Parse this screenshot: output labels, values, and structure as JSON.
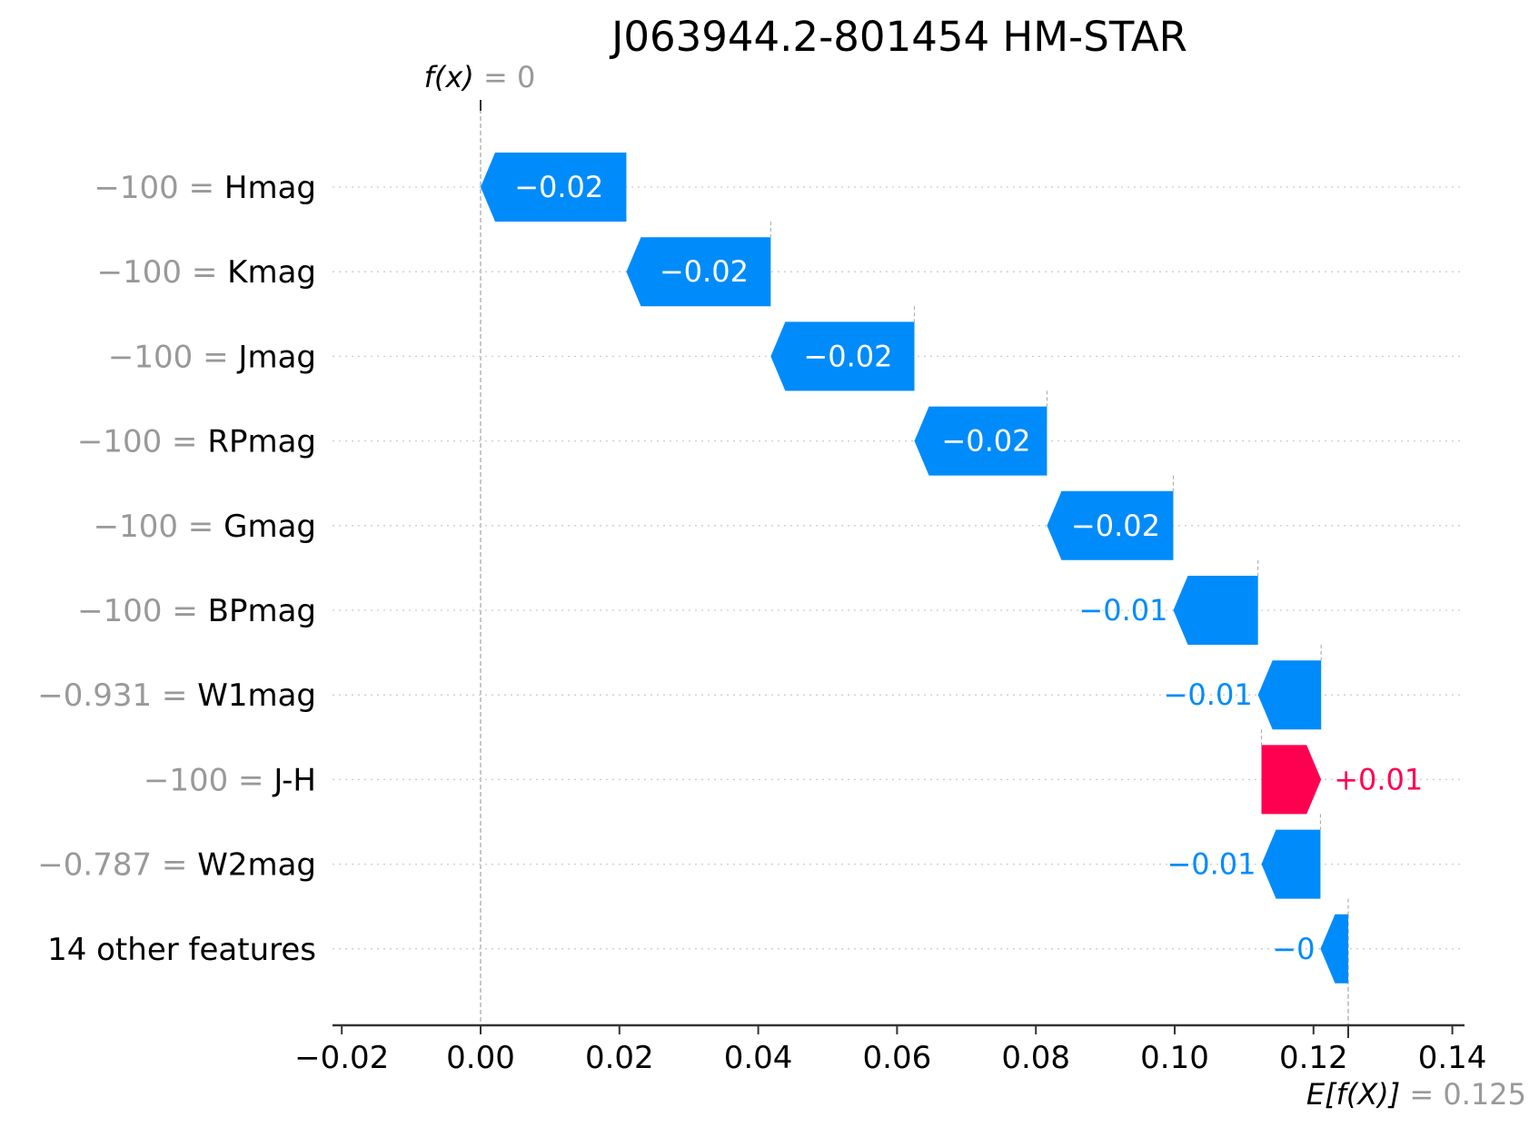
{
  "chart_data": {
    "type": "waterfall",
    "title": "J063944.2-801454 HM-STAR",
    "top_label": {
      "prefix": "f(x)",
      "eq": " = ",
      "value": "0"
    },
    "bottom_label": {
      "prefix": "E[f(X)]",
      "eq": " = ",
      "value": "0.125"
    },
    "base_value": 0.125,
    "output_value": 0.0,
    "xlim": [
      -0.021,
      0.142
    ],
    "x_ticks": [
      -0.02,
      0.0,
      0.02,
      0.04,
      0.06,
      0.08,
      0.1,
      0.12,
      0.14
    ],
    "x_tick_labels": [
      "−0.02",
      "0.00",
      "0.02",
      "0.04",
      "0.06",
      "0.08",
      "0.10",
      "0.12",
      "0.14"
    ],
    "features": [
      {
        "value_text": "−100",
        "name": "Hmag",
        "start": 0.021,
        "end": 0.0,
        "label": "−0.02"
      },
      {
        "value_text": "−100",
        "name": "Kmag",
        "start": 0.0418,
        "end": 0.021,
        "label": "−0.02"
      },
      {
        "value_text": "−100",
        "name": "Jmag",
        "start": 0.0625,
        "end": 0.0418,
        "label": "−0.02"
      },
      {
        "value_text": "−100",
        "name": "RPmag",
        "start": 0.0816,
        "end": 0.0625,
        "label": "−0.02"
      },
      {
        "value_text": "−100",
        "name": "Gmag",
        "start": 0.0998,
        "end": 0.0816,
        "label": "−0.02"
      },
      {
        "value_text": "−100",
        "name": "BPmag",
        "start": 0.112,
        "end": 0.0998,
        "label": "−0.01"
      },
      {
        "value_text": "−0.931",
        "name": "W1mag",
        "start": 0.1211,
        "end": 0.112,
        "label": "−0.01"
      },
      {
        "value_text": "−100",
        "name": "J-H",
        "start": 0.1125,
        "end": 0.1211,
        "label": "+0.01"
      },
      {
        "value_text": "−0.787",
        "name": "W2mag",
        "start": 0.121,
        "end": 0.1125,
        "label": "−0.01"
      },
      {
        "value_text": "",
        "name": "14 other features",
        "start": 0.125,
        "end": 0.121,
        "label": "−0"
      }
    ],
    "colors": {
      "negative": "#008bfb",
      "positive": "#ff0051",
      "value_text": "#999999",
      "axis": "#333333",
      "text": "#000000",
      "grid": "#cccccc"
    }
  }
}
